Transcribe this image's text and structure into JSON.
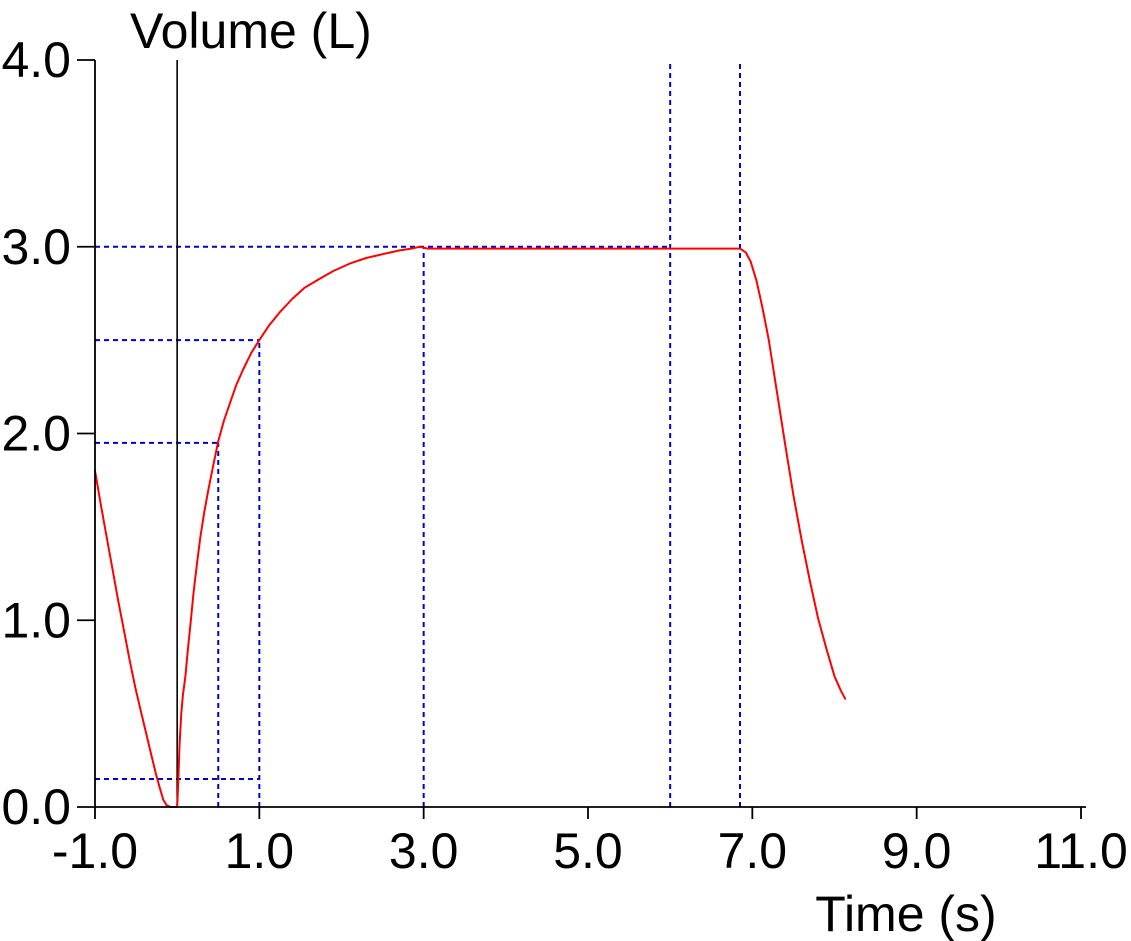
{
  "chart": {
    "title_label": "Volume (L)",
    "x_axis_label": "Time (s)"
  },
  "chart_data": {
    "type": "line",
    "title": "Volume (L)",
    "xlabel": "Time (s)",
    "ylabel": "Volume (L)",
    "xlim": [
      -1.0,
      11.0
    ],
    "ylim": [
      0.0,
      4.0
    ],
    "grid": false,
    "legend": "none",
    "x_ticks": [
      {
        "value": -1.0,
        "label": "-1.0"
      },
      {
        "value": 1.0,
        "label": "1.0"
      },
      {
        "value": 3.0,
        "label": "3.0"
      },
      {
        "value": 5.0,
        "label": "5.0"
      },
      {
        "value": 7.0,
        "label": "7.0"
      },
      {
        "value": 9.0,
        "label": "9.0"
      },
      {
        "value": 11.0,
        "label": "11.0"
      }
    ],
    "y_ticks": [
      {
        "value": 0.0,
        "label": "0.0"
      },
      {
        "value": 1.0,
        "label": "1.0"
      },
      {
        "value": 2.0,
        "label": "2.0"
      },
      {
        "value": 3.0,
        "label": "3.0"
      },
      {
        "value": 4.0,
        "label": "4.0"
      }
    ],
    "colors": {
      "curve": "#ff0000",
      "guide": "#0000cc",
      "axis": "#000000",
      "event_line": "#000000"
    },
    "event_line": {
      "t": 0.0,
      "v0": 0.0,
      "v1": 4.0
    },
    "guide_lines_horizontal": [
      {
        "volume": 3.0,
        "t_from": -1.0,
        "t_to": 6.0
      },
      {
        "volume": 2.5,
        "t_from": -1.0,
        "t_to": 1.0
      },
      {
        "volume": 1.95,
        "t_from": -1.0,
        "t_to": 0.5
      },
      {
        "volume": 0.15,
        "t_from": -1.0,
        "t_to": 1.0
      }
    ],
    "guide_lines_vertical": [
      {
        "time": 0.5,
        "v_from": 0.0,
        "v_to": 1.95
      },
      {
        "time": 1.0,
        "v_from": 0.0,
        "v_to": 2.5
      },
      {
        "time": 3.0,
        "v_from": 0.0,
        "v_to": 2.99
      },
      {
        "time": 6.0,
        "v_from": 0.0,
        "v_to": 4.0
      },
      {
        "time": 6.85,
        "v_from": 0.0,
        "v_to": 4.0
      }
    ],
    "series": [
      {
        "name": "volume-time-curve",
        "color": "#ff0000",
        "points": [
          [
            -1.0,
            1.8
          ],
          [
            -0.93,
            1.62
          ],
          [
            -0.86,
            1.45
          ],
          [
            -0.79,
            1.28
          ],
          [
            -0.72,
            1.11
          ],
          [
            -0.65,
            0.95
          ],
          [
            -0.58,
            0.79
          ],
          [
            -0.51,
            0.64
          ],
          [
            -0.44,
            0.51
          ],
          [
            -0.37,
            0.38
          ],
          [
            -0.31,
            0.27
          ],
          [
            -0.26,
            0.18
          ],
          [
            -0.21,
            0.1
          ],
          [
            -0.17,
            0.04
          ],
          [
            -0.13,
            0.01
          ],
          [
            -0.08,
            0.0
          ],
          [
            -0.02,
            0.0
          ],
          [
            0.0,
            0.0
          ],
          [
            0.01,
            0.1
          ],
          [
            0.02,
            0.22
          ],
          [
            0.03,
            0.34
          ],
          [
            0.05,
            0.5
          ],
          [
            0.07,
            0.6
          ],
          [
            0.1,
            0.7
          ],
          [
            0.13,
            0.84
          ],
          [
            0.16,
            0.97
          ],
          [
            0.2,
            1.15
          ],
          [
            0.24,
            1.3
          ],
          [
            0.28,
            1.44
          ],
          [
            0.33,
            1.58
          ],
          [
            0.38,
            1.7
          ],
          [
            0.44,
            1.83
          ],
          [
            0.5,
            1.96
          ],
          [
            0.57,
            2.07
          ],
          [
            0.64,
            2.16
          ],
          [
            0.72,
            2.26
          ],
          [
            0.8,
            2.34
          ],
          [
            0.9,
            2.43
          ],
          [
            1.0,
            2.5
          ],
          [
            1.12,
            2.58
          ],
          [
            1.25,
            2.65
          ],
          [
            1.4,
            2.72
          ],
          [
            1.55,
            2.78
          ],
          [
            1.7,
            2.82
          ],
          [
            1.9,
            2.87
          ],
          [
            2.1,
            2.91
          ],
          [
            2.3,
            2.94
          ],
          [
            2.5,
            2.96
          ],
          [
            2.7,
            2.98
          ],
          [
            2.85,
            2.99
          ],
          [
            2.95,
            3.0
          ],
          [
            3.05,
            2.99
          ],
          [
            3.5,
            2.99
          ],
          [
            4.0,
            2.99
          ],
          [
            4.5,
            2.99
          ],
          [
            5.0,
            2.99
          ],
          [
            5.5,
            2.99
          ],
          [
            6.0,
            2.99
          ],
          [
            6.4,
            2.99
          ],
          [
            6.85,
            2.99
          ],
          [
            6.92,
            2.97
          ],
          [
            6.98,
            2.92
          ],
          [
            7.05,
            2.82
          ],
          [
            7.12,
            2.68
          ],
          [
            7.2,
            2.5
          ],
          [
            7.3,
            2.22
          ],
          [
            7.4,
            1.94
          ],
          [
            7.5,
            1.67
          ],
          [
            7.6,
            1.43
          ],
          [
            7.7,
            1.21
          ],
          [
            7.8,
            1.01
          ],
          [
            7.9,
            0.85
          ],
          [
            8.0,
            0.7
          ],
          [
            8.08,
            0.62
          ],
          [
            8.13,
            0.58
          ]
        ]
      }
    ]
  }
}
